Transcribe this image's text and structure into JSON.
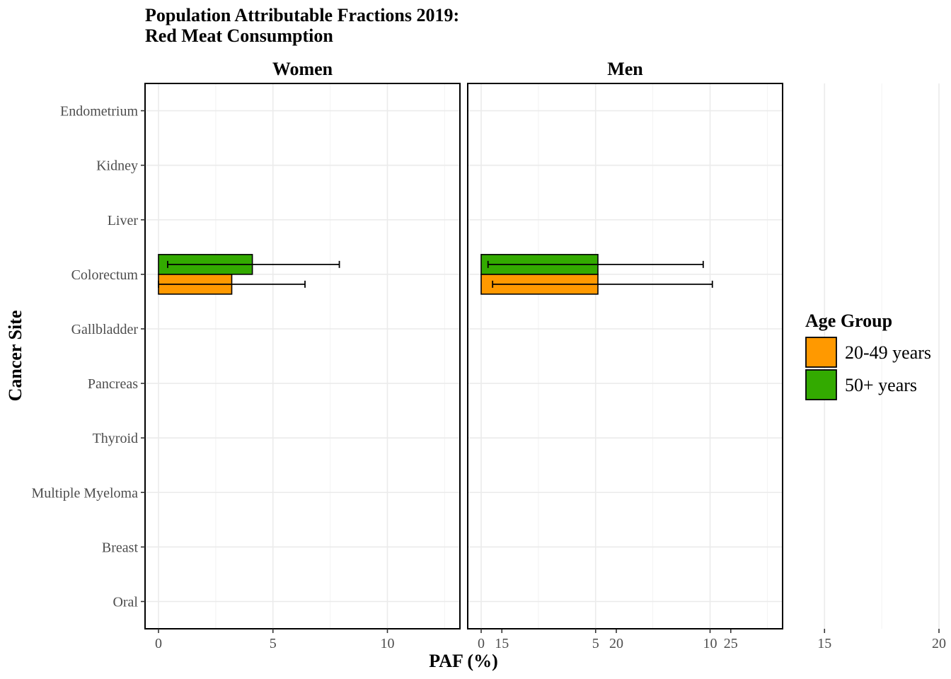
{
  "chart_data": {
    "type": "bar",
    "orientation": "horizontal",
    "title_lines": [
      "Population Attributable Fractions 2019:",
      "Red Meat Consumption"
    ],
    "xlabel": "PAF (%)",
    "ylabel": "Cancer Site",
    "xlim": [
      0,
      25
    ],
    "x_ticks": [
      0,
      5,
      10,
      15,
      20,
      25
    ],
    "grid": true,
    "categories": [
      "Endometrium",
      "Kidney",
      "Liver",
      "Colorectum",
      "Gallbladder",
      "Pancreas",
      "Thyroid",
      "Multiple Myeloma",
      "Breast",
      "Oral"
    ],
    "legend": {
      "title": "Age Group",
      "position": "right",
      "entries": [
        {
          "label": "20-49 years",
          "color": "#FF9900"
        },
        {
          "label": "50+ years",
          "color": "#33AA00"
        }
      ]
    },
    "panels": [
      {
        "name": "Women",
        "series": [
          {
            "name": "20-49 years",
            "color": "#FF9900",
            "values": [
              0,
              0,
              0,
              3.2,
              0,
              0,
              0,
              0,
              0,
              0
            ],
            "lower": [
              0,
              0,
              0,
              0.0,
              0,
              0,
              0,
              0,
              0,
              0
            ],
            "upper": [
              0,
              0,
              0,
              6.4,
              0,
              0,
              0,
              0,
              0,
              0
            ]
          },
          {
            "name": "50+ years",
            "color": "#33AA00",
            "values": [
              0,
              0,
              0,
              4.1,
              0,
              0,
              0,
              0,
              0,
              0
            ],
            "lower": [
              0,
              0,
              0,
              0.4,
              0,
              0,
              0,
              0,
              0,
              0
            ],
            "upper": [
              0,
              0,
              0,
              7.9,
              0,
              0,
              0,
              0,
              0,
              0
            ]
          }
        ]
      },
      {
        "name": "Men",
        "series": [
          {
            "name": "20-49 years",
            "color": "#FF9900",
            "values": [
              0,
              0,
              0,
              5.1,
              0,
              0,
              0,
              0,
              0,
              0
            ],
            "lower": [
              0,
              0,
              0,
              0.5,
              0,
              0,
              0,
              0,
              0,
              0
            ],
            "upper": [
              0,
              0,
              0,
              10.1,
              0,
              0,
              0,
              0,
              0,
              0
            ]
          },
          {
            "name": "50+ years",
            "color": "#33AA00",
            "values": [
              0,
              0,
              0,
              5.1,
              0,
              0,
              0,
              0,
              0,
              0
            ],
            "lower": [
              0,
              0,
              0,
              0.3,
              0,
              0,
              0,
              0,
              0,
              0
            ],
            "upper": [
              0,
              0,
              0,
              9.7,
              0,
              0,
              0,
              0,
              0,
              0
            ]
          }
        ]
      }
    ]
  }
}
